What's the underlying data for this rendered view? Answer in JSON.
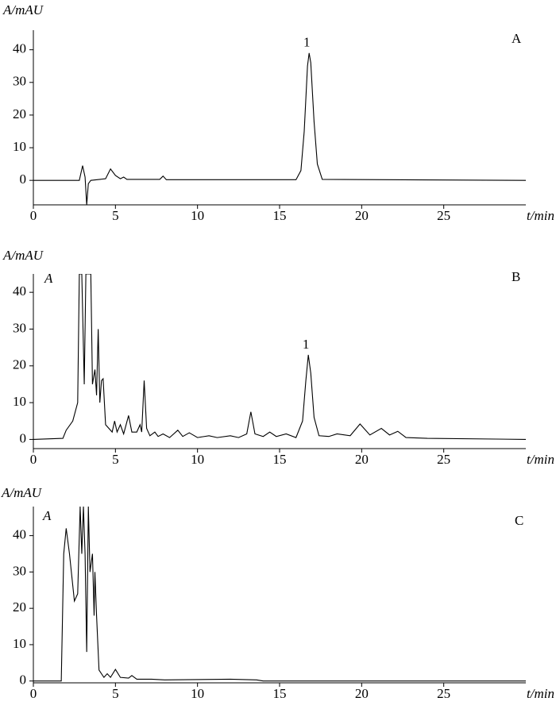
{
  "chart_data": [
    {
      "type": "line",
      "ylabel": "A/mAU",
      "xlabel": "t/min",
      "panel_label": "A",
      "peak_label": {
        "text": "1",
        "x": 16.8
      },
      "xlim": [
        0,
        30
      ],
      "xticks": [
        0,
        5,
        10,
        15,
        20,
        25
      ],
      "ylim": [
        -7.5,
        46
      ],
      "yticks": [
        0,
        10,
        20,
        30,
        40
      ],
      "color": "#000000",
      "x": [
        0,
        2.8,
        3.0,
        3.15,
        3.25,
        3.35,
        3.5,
        4.4,
        4.7,
        5.0,
        5.3,
        5.5,
        5.7,
        7.7,
        7.9,
        8.1,
        16.0,
        16.3,
        16.5,
        16.7,
        16.8,
        16.9,
        17.1,
        17.3,
        17.6,
        30
      ],
      "values": [
        0,
        0,
        4.5,
        1,
        -7.5,
        -1,
        0,
        0.5,
        3.5,
        1.5,
        0.5,
        1,
        0.3,
        0.3,
        1.3,
        0.2,
        0.2,
        3,
        15,
        35,
        39,
        36,
        18,
        5,
        0.3,
        0
      ]
    },
    {
      "type": "line",
      "ylabel": "A/mAU",
      "xlabel": "t/min",
      "panel_label": "B",
      "corner_label": "A",
      "peak_label": {
        "text": "1",
        "x": 16.75
      },
      "xlim": [
        0,
        30
      ],
      "xticks": [
        0,
        5,
        10,
        15,
        20,
        25
      ],
      "ylim": [
        -2.5,
        45
      ],
      "yticks": [
        0,
        10,
        20,
        30,
        40
      ],
      "color": "#000000",
      "x": [
        0,
        1.8,
        2.0,
        2.4,
        2.7,
        2.8,
        2.95,
        3.1,
        3.2,
        3.5,
        3.6,
        3.75,
        3.85,
        3.95,
        4.05,
        4.15,
        4.25,
        4.4,
        4.8,
        4.95,
        5.1,
        5.3,
        5.5,
        5.8,
        6.0,
        6.3,
        6.5,
        6.6,
        6.75,
        6.9,
        7.1,
        7.4,
        7.6,
        7.9,
        8.3,
        8.8,
        9.1,
        9.5,
        10,
        10.7,
        11.2,
        12,
        12.5,
        13.0,
        13.25,
        13.5,
        14.0,
        14.4,
        14.8,
        15.4,
        16,
        16.4,
        16.6,
        16.75,
        16.9,
        17.1,
        17.4,
        18.0,
        18.5,
        19.3,
        19.9,
        20.5,
        21.2,
        21.7,
        22.2,
        22.7,
        24,
        30
      ],
      "values": [
        0,
        0.3,
        2.5,
        5,
        10,
        45,
        45,
        15,
        45,
        45,
        15,
        19,
        12,
        30,
        10,
        16,
        16.5,
        4,
        2,
        5,
        2,
        4,
        1.5,
        6.5,
        2,
        2,
        4,
        2,
        16,
        3,
        1,
        2,
        0.8,
        1.5,
        0.5,
        2.5,
        0.8,
        1.8,
        0.5,
        1,
        0.5,
        1,
        0.5,
        1.5,
        7.5,
        1.5,
        0.8,
        2,
        0.8,
        1.5,
        0.5,
        5,
        16,
        23,
        18,
        6,
        1,
        0.8,
        1.5,
        1,
        4.2,
        1.2,
        3,
        1.2,
        2.2,
        0.5,
        0.3,
        0
      ]
    },
    {
      "type": "line",
      "ylabel": "A/mAU",
      "xlabel": "t/min",
      "panel_label": "C",
      "corner_label": "A",
      "xlim": [
        0,
        30
      ],
      "xticks": [
        0,
        5,
        10,
        15,
        20,
        25
      ],
      "ylim": [
        -0.5,
        48
      ],
      "yticks": [
        0,
        10,
        20,
        30,
        40
      ],
      "color": "#000000",
      "x": [
        0,
        1.7,
        1.85,
        2.0,
        2.2,
        2.5,
        2.7,
        2.85,
        2.95,
        3.05,
        3.15,
        3.25,
        3.35,
        3.45,
        3.6,
        3.7,
        3.75,
        3.85,
        4.0,
        4.3,
        4.5,
        4.7,
        5.0,
        5.3,
        5.8,
        6.0,
        6.3,
        7.2,
        8,
        12,
        13.6,
        14,
        30
      ],
      "values": [
        0,
        0,
        35,
        42,
        35,
        22,
        24,
        48,
        35,
        48,
        35,
        8,
        48,
        30,
        35,
        18,
        30,
        18,
        3,
        1,
        2,
        1,
        3.2,
        1,
        0.8,
        1.5,
        0.5,
        0.5,
        0.3,
        0.5,
        0.3,
        0,
        0
      ]
    }
  ]
}
